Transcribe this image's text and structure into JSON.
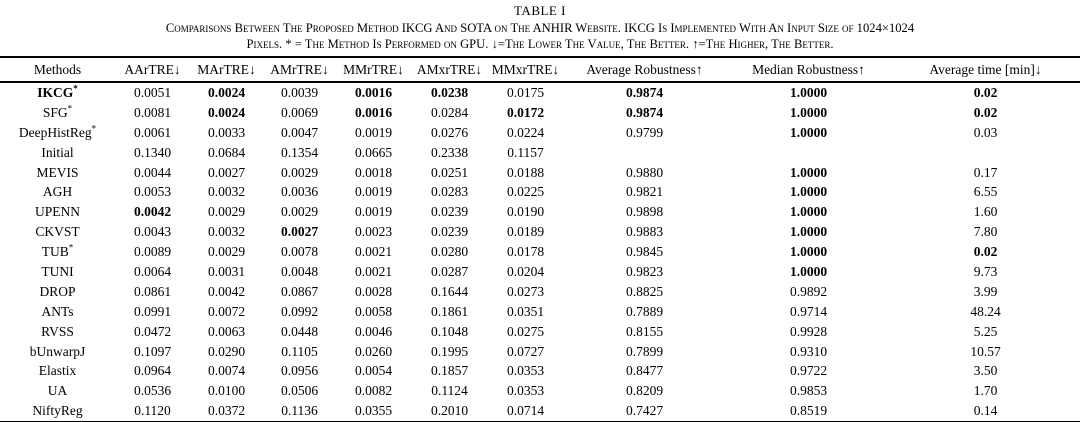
{
  "page": {
    "background_color": "#ffffff",
    "text_color": "#000000"
  },
  "title": "TABLE I",
  "caption": {
    "line1": "Comparisons Between The Proposed Method IKCG And SOTA on The ANHIR Website. IKCG Is Implemented With An Input Size of 1024×1024",
    "line2": "Pixels. * = The Method Is Performed on GPU. ↓=The Lower The Value, The Better. ↑=The Higher, The Better."
  },
  "table": {
    "columns": [
      "Methods",
      "AArTRE↓",
      "MArTRE↓",
      "AMrTRE↓",
      "MMrTRE↓",
      "AMxrTRE↓",
      "MMxrTRE↓",
      "Average Robustness↑",
      "Median Robustness↑",
      "Average time [min]↓"
    ],
    "rows": [
      {
        "method": "IKCG",
        "sup": "*",
        "method_bold": true,
        "values": [
          "0.0051",
          "0.0024",
          "0.0039",
          "0.0016",
          "0.0238",
          "0.0175",
          "0.9874",
          "1.0000",
          "0.02"
        ],
        "bold_indices": [
          1,
          3,
          4,
          6,
          7,
          8
        ]
      },
      {
        "method": "SFG",
        "sup": "*",
        "method_bold": false,
        "values": [
          "0.0081",
          "0.0024",
          "0.0069",
          "0.0016",
          "0.0284",
          "0.0172",
          "0.9874",
          "1.0000",
          "0.02"
        ],
        "bold_indices": [
          1,
          3,
          5,
          6,
          7,
          8
        ]
      },
      {
        "method": "DeepHistReg",
        "sup": "*",
        "method_bold": false,
        "values": [
          "0.0061",
          "0.0033",
          "0.0047",
          "0.0019",
          "0.0276",
          "0.0224",
          "0.9799",
          "1.0000",
          "0.03"
        ],
        "bold_indices": [
          7
        ]
      },
      {
        "method": "Initial",
        "sup": "",
        "method_bold": false,
        "values": [
          "0.1340",
          "0.0684",
          "0.1354",
          "0.0665",
          "0.2338",
          "0.1157",
          "",
          "",
          ""
        ],
        "bold_indices": []
      },
      {
        "method": "MEVIS",
        "sup": "",
        "method_bold": false,
        "values": [
          "0.0044",
          "0.0027",
          "0.0029",
          "0.0018",
          "0.0251",
          "0.0188",
          "0.9880",
          "1.0000",
          "0.17"
        ],
        "bold_indices": [
          7
        ]
      },
      {
        "method": "AGH",
        "sup": "",
        "method_bold": false,
        "values": [
          "0.0053",
          "0.0032",
          "0.0036",
          "0.0019",
          "0.0283",
          "0.0225",
          "0.9821",
          "1.0000",
          "6.55"
        ],
        "bold_indices": [
          7
        ]
      },
      {
        "method": "UPENN",
        "sup": "",
        "method_bold": false,
        "values": [
          "0.0042",
          "0.0029",
          "0.0029",
          "0.0019",
          "0.0239",
          "0.0190",
          "0.9898",
          "1.0000",
          "1.60"
        ],
        "bold_indices": [
          0,
          7
        ]
      },
      {
        "method": "CKVST",
        "sup": "",
        "method_bold": false,
        "values": [
          "0.0043",
          "0.0032",
          "0.0027",
          "0.0023",
          "0.0239",
          "0.0189",
          "0.9883",
          "1.0000",
          "7.80"
        ],
        "bold_indices": [
          2,
          7
        ]
      },
      {
        "method": "TUB",
        "sup": "*",
        "method_bold": false,
        "values": [
          "0.0089",
          "0.0029",
          "0.0078",
          "0.0021",
          "0.0280",
          "0.0178",
          "0.9845",
          "1.0000",
          "0.02"
        ],
        "bold_indices": [
          7,
          8
        ]
      },
      {
        "method": "TUNI",
        "sup": "",
        "method_bold": false,
        "values": [
          "0.0064",
          "0.0031",
          "0.0048",
          "0.0021",
          "0.0287",
          "0.0204",
          "0.9823",
          "1.0000",
          "9.73"
        ],
        "bold_indices": [
          7
        ]
      },
      {
        "method": "DROP",
        "sup": "",
        "method_bold": false,
        "values": [
          "0.0861",
          "0.0042",
          "0.0867",
          "0.0028",
          "0.1644",
          "0.0273",
          "0.8825",
          "0.9892",
          "3.99"
        ],
        "bold_indices": []
      },
      {
        "method": "ANTs",
        "sup": "",
        "method_bold": false,
        "values": [
          "0.0991",
          "0.0072",
          "0.0992",
          "0.0058",
          "0.1861",
          "0.0351",
          "0.7889",
          "0.9714",
          "48.24"
        ],
        "bold_indices": []
      },
      {
        "method": "RVSS",
        "sup": "",
        "method_bold": false,
        "values": [
          "0.0472",
          "0.0063",
          "0.0448",
          "0.0046",
          "0.1048",
          "0.0275",
          "0.8155",
          "0.9928",
          "5.25"
        ],
        "bold_indices": []
      },
      {
        "method": "bUnwarpJ",
        "sup": "",
        "method_bold": false,
        "values": [
          "0.1097",
          "0.0290",
          "0.1105",
          "0.0260",
          "0.1995",
          "0.0727",
          "0.7899",
          "0.9310",
          "10.57"
        ],
        "bold_indices": []
      },
      {
        "method": "Elastix",
        "sup": "",
        "method_bold": false,
        "values": [
          "0.0964",
          "0.0074",
          "0.0956",
          "0.0054",
          "0.1857",
          "0.0353",
          "0.8477",
          "0.9722",
          "3.50"
        ],
        "bold_indices": []
      },
      {
        "method": "UA",
        "sup": "",
        "method_bold": false,
        "values": [
          "0.0536",
          "0.0100",
          "0.0506",
          "0.0082",
          "0.1124",
          "0.0353",
          "0.8209",
          "0.9853",
          "1.70"
        ],
        "bold_indices": []
      },
      {
        "method": "NiftyReg",
        "sup": "",
        "method_bold": false,
        "values": [
          "0.1120",
          "0.0372",
          "0.1136",
          "0.0355",
          "0.2010",
          "0.0714",
          "0.7427",
          "0.8519",
          "0.14"
        ],
        "bold_indices": []
      }
    ]
  }
}
